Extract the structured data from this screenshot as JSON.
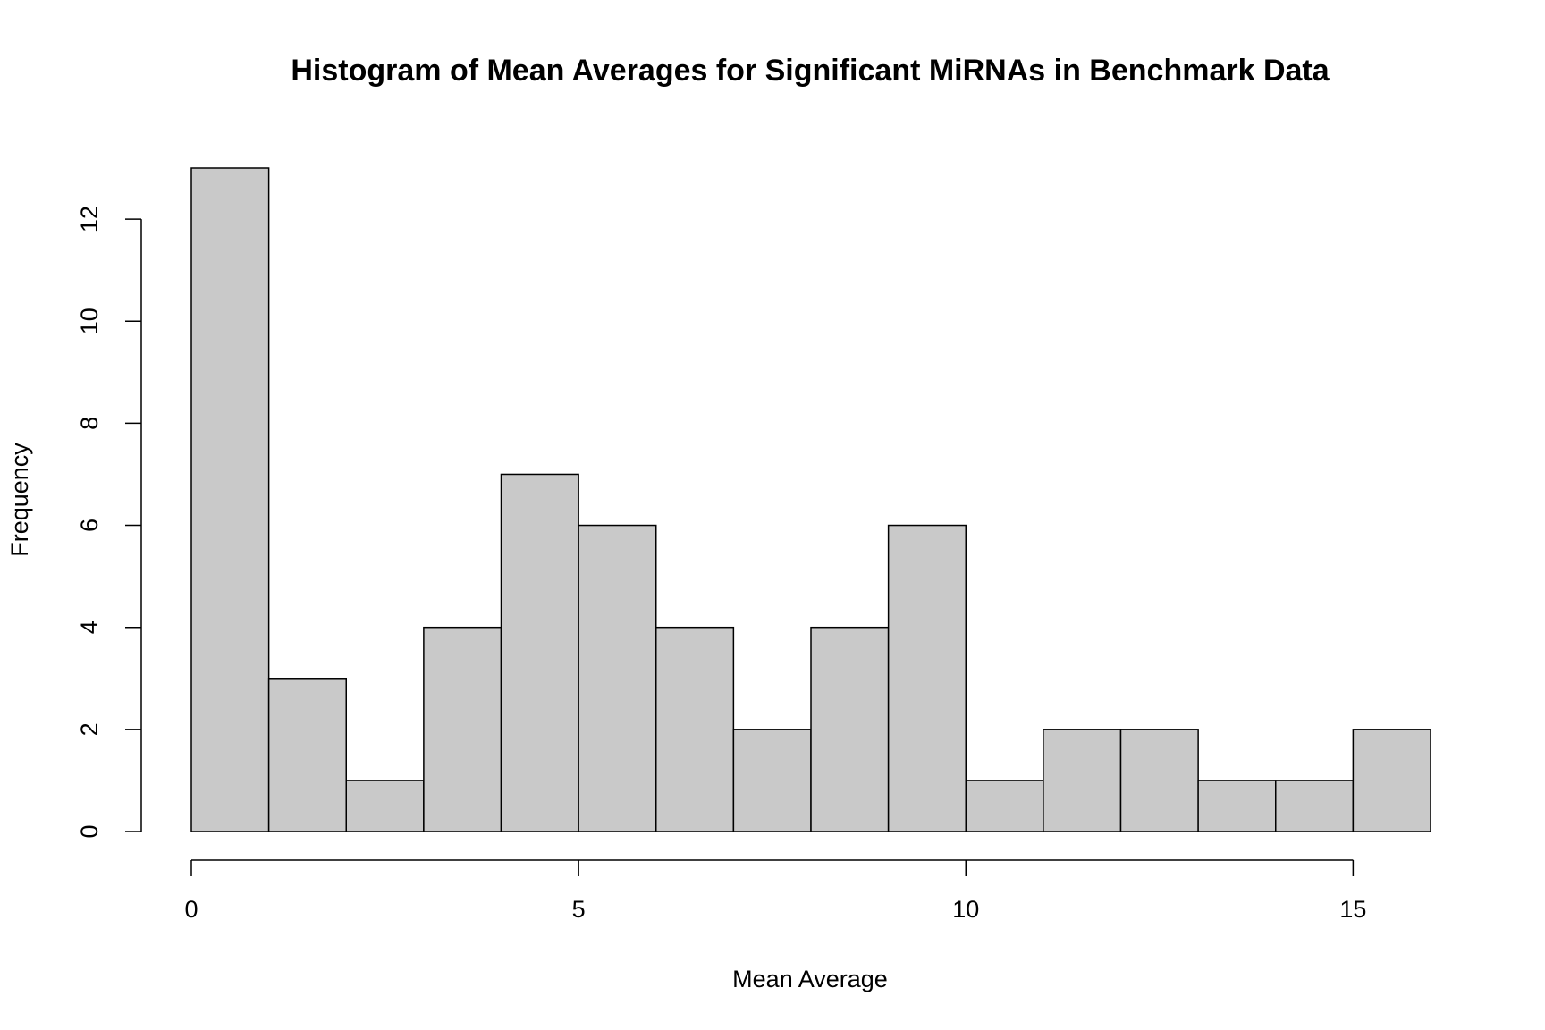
{
  "chart_data": {
    "type": "histogram",
    "title": "Histogram of Mean Averages for Significant MiRNAs in Benchmark Data",
    "x_label": "Mean Average",
    "y_label": "Frequency",
    "bins": [
      0,
      1,
      2,
      3,
      4,
      5,
      6,
      7,
      8,
      9,
      10,
      11,
      12,
      13,
      14,
      15,
      16
    ],
    "values": [
      13,
      3,
      1,
      4,
      7,
      6,
      4,
      2,
      4,
      6,
      1,
      2,
      2,
      1,
      1,
      2
    ],
    "color": "#c9c9c9",
    "xlim": [
      0,
      16
    ],
    "ylim": [
      0,
      13
    ],
    "xticks": [
      0,
      5,
      10,
      15
    ],
    "yticks": [
      0,
      2,
      4,
      6,
      8,
      10,
      12
    ]
  }
}
